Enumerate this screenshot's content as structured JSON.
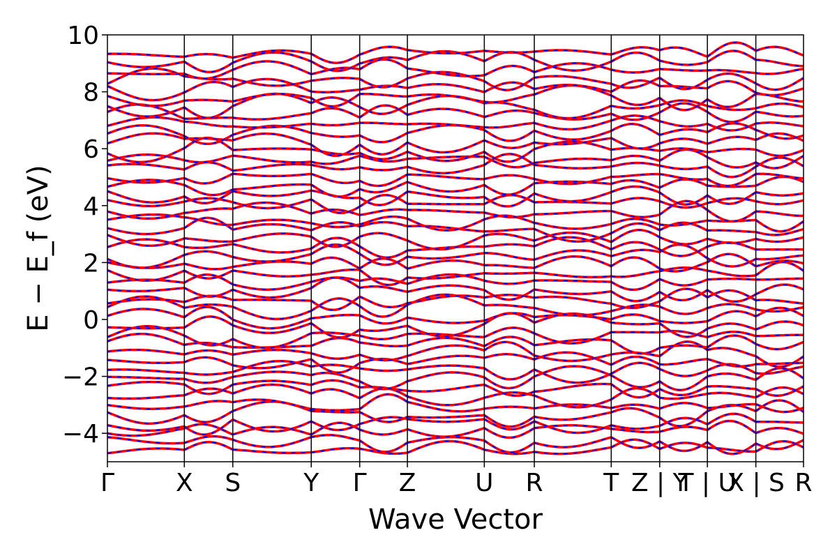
{
  "chart_data": {
    "type": "line",
    "title": "",
    "xlabel": "Wave Vector",
    "ylabel": "E − E_f (eV)",
    "ylim": [
      -5,
      10
    ],
    "yticks": [
      -4,
      -2,
      0,
      2,
      4,
      6,
      8,
      10
    ],
    "ytick_labels": [
      "−4",
      "−2",
      "0",
      "2",
      "4",
      "6",
      "8",
      "10"
    ],
    "xlim": [
      0,
      9.05
    ],
    "kpoint_positions": [
      0,
      1.0,
      1.63,
      2.65,
      3.28,
      3.9,
      4.9,
      5.55,
      6.55,
      7.18,
      7.8,
      8.43,
      9.05
    ],
    "kpoint_labels": [
      "Γ",
      "X",
      "S",
      "Y",
      "Γ",
      "Z",
      "U",
      "R",
      "T",
      "Z | Y",
      "T | U",
      "X | S",
      "R"
    ],
    "series": [
      {
        "color": "#ff0000",
        "style": "solid"
      },
      {
        "color": "#0000ff",
        "style": "dashed"
      }
    ]
  }
}
